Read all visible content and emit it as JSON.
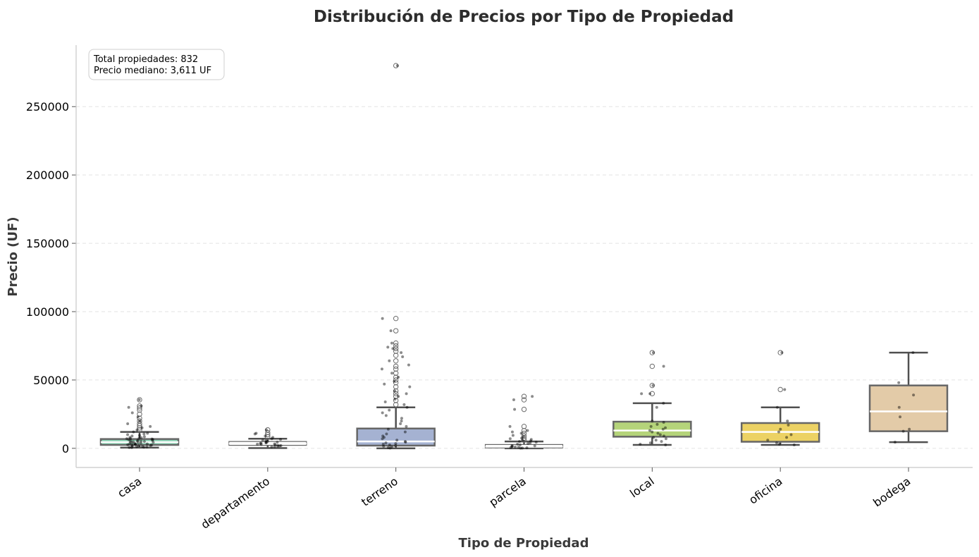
{
  "chart_data": {
    "type": "box",
    "title": "Distribución de Precios por Tipo de Propiedad",
    "xlabel": "Tipo de Propiedad",
    "ylabel": "Precio (UF)",
    "ylim": [
      -14000,
      295000
    ],
    "yticks": [
      0,
      50000,
      100000,
      150000,
      200000,
      250000
    ],
    "grid": "horizontal dashed",
    "annotation": {
      "line1": "Total propiedades: 832",
      "line2": "Precio mediano: 3,611 UF"
    },
    "categories": [
      "casa",
      "departamento",
      "terreno",
      "parcela",
      "local",
      "oficina",
      "bodega"
    ],
    "boxes": [
      {
        "category": "casa",
        "whisker_low": 500,
        "q1": 2500,
        "median": 4500,
        "q3": 6800,
        "whisker_high": 12000,
        "color": "#8fd3b6",
        "outliers": [
          13500,
          15000,
          16500,
          18000,
          20000,
          22000,
          25000,
          28000,
          29500,
          31000,
          35500
        ],
        "jitter": [
          35500,
          31000,
          30000,
          26000,
          23000,
          20000,
          18000,
          16000,
          15000,
          13500,
          12000,
          11000,
          10500,
          10000,
          9500,
          9000,
          8500,
          8000,
          7800,
          7500,
          7200,
          7000,
          6800,
          6500,
          6200,
          6000,
          5800,
          5600,
          5400,
          5200,
          5000,
          4800,
          4600,
          4400,
          4200,
          4000,
          3800,
          3600,
          3400,
          3200,
          3000,
          2800,
          2600,
          2400,
          2200,
          2000,
          1800,
          1600,
          1400,
          1200,
          1000,
          800,
          600,
          500
        ]
      },
      {
        "category": "departamento",
        "whisker_low": 200,
        "q1": 2200,
        "median": 3500,
        "q3": 5000,
        "whisker_high": 7000,
        "color": "#ffffff",
        "outliers": [
          8500,
          10000,
          11500,
          13500
        ],
        "jitter": [
          13500,
          11000,
          10500,
          9000,
          8000,
          7000,
          6500,
          6000,
          5500,
          5000,
          4800,
          4500,
          4200,
          4000,
          3800,
          3500,
          3200,
          3000,
          2800,
          2500,
          2200,
          2000,
          1800,
          1500,
          1200,
          1000
        ]
      },
      {
        "category": "terreno",
        "whisker_low": 0,
        "q1": 2000,
        "median": 5000,
        "q3": 14500,
        "whisker_high": 30000,
        "color": "#a5b2d2",
        "outliers": [
          32000,
          35000,
          38000,
          40000,
          42000,
          45000,
          48000,
          50000,
          52000,
          55000,
          58000,
          60000,
          64000,
          68000,
          71000,
          73000,
          75000,
          77000,
          86000,
          95000,
          280000
        ],
        "jitter": [
          280000,
          95000,
          86000,
          77000,
          74000,
          73000,
          70000,
          67000,
          64000,
          61000,
          58000,
          55000,
          52000,
          49000,
          47000,
          45000,
          42000,
          40000,
          38000,
          36000,
          34000,
          32000,
          30000,
          28000,
          26000,
          24000,
          22000,
          20000,
          18000,
          16000,
          14000,
          12000,
          10500,
          9000,
          8000,
          7000,
          6000,
          5000,
          4500,
          4000,
          3500,
          3000,
          2500,
          2000,
          1500,
          1000,
          500,
          200
        ]
      },
      {
        "category": "parcela",
        "whisker_low": 0,
        "q1": 300,
        "median": 1200,
        "q3": 2800,
        "whisker_high": 5000,
        "color": "#ffffff",
        "outliers": [
          6000,
          7500,
          9000,
          11000,
          13000,
          16000,
          28500,
          35500,
          38000
        ],
        "jitter": [
          38000,
          35500,
          28500,
          16000,
          13000,
          12000,
          11000,
          9500,
          8500,
          7500,
          7000,
          6500,
          6000,
          5500,
          5000,
          4500,
          4000,
          3500,
          3000,
          2500,
          2000,
          1800,
          1500,
          1200,
          1000,
          800,
          600,
          400,
          200,
          100
        ]
      },
      {
        "category": "local",
        "whisker_low": 2500,
        "q1": 8500,
        "median": 13000,
        "q3": 19500,
        "whisker_high": 33000,
        "color": "#b5d47a",
        "outliers": [
          40000,
          46000,
          60000,
          70000
        ],
        "jitter": [
          70000,
          60000,
          46000,
          40000,
          40000,
          33000,
          30000,
          20000,
          19000,
          17500,
          16000,
          15000,
          14000,
          13000,
          12000,
          11000,
          10000,
          9000,
          8000,
          7000,
          6000,
          5000,
          4000,
          3000,
          2500
        ]
      },
      {
        "category": "oficina",
        "whisker_low": 2500,
        "q1": 4800,
        "median": 12000,
        "q3": 18500,
        "whisker_high": 30000,
        "color": "#ecd264",
        "outliers": [
          43000,
          70000
        ],
        "jitter": [
          70000,
          43000,
          30000,
          20000,
          17000,
          14000,
          12000,
          10000,
          8000,
          6000,
          4000,
          3000,
          2500
        ]
      },
      {
        "category": "bodega",
        "whisker_low": 4500,
        "q1": 12500,
        "median": 27000,
        "q3": 46000,
        "whisker_high": 70000,
        "color": "#e3cba8",
        "outliers": [],
        "jitter": [
          70000,
          48000,
          39000,
          30000,
          23000,
          14000,
          12500,
          4500
        ]
      }
    ]
  }
}
